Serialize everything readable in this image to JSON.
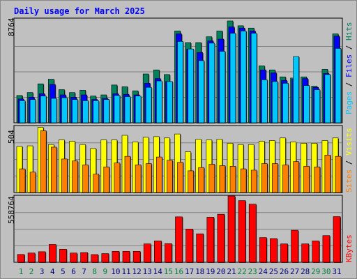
{
  "title": "Daily usage for March 2025",
  "panels": {
    "top": {
      "max_label": "8764",
      "legend": [
        "Pages",
        "Files",
        "Hits"
      ]
    },
    "middle": {
      "max_label": "504",
      "legend": [
        "Sites",
        "Visits"
      ]
    },
    "bottom": {
      "max_label": "558764",
      "legend": [
        "KBytes"
      ]
    }
  },
  "colors": {
    "background": "#c0c0c0",
    "title": "#0000ff",
    "hits": "#00805c",
    "files": "#0000ff",
    "pages": "#00c8ff",
    "visits": "#ffff00",
    "sites": "#ff8000",
    "kbytes": "#ff0000",
    "weekday_label": "#000080",
    "weekend_label": "#008040"
  },
  "chart_data": [
    {
      "type": "bar",
      "title": "Daily usage for March 2025",
      "ylabel": "Pages / Files / Hits",
      "ylim": [
        0,
        8764
      ],
      "categories": [
        "1",
        "2",
        "3",
        "4",
        "5",
        "6",
        "7",
        "8",
        "9",
        "10",
        "11",
        "12",
        "13",
        "14",
        "15",
        "16",
        "17",
        "18",
        "19",
        "20",
        "21",
        "22",
        "23",
        "24",
        "25",
        "26",
        "27",
        "28",
        "29",
        "30",
        "31"
      ],
      "weekend_days": [
        "1",
        "2",
        "8",
        "9",
        "15",
        "16",
        "22",
        "23",
        "29",
        "30"
      ],
      "series": [
        {
          "name": "Hits",
          "values": [
            2350,
            2600,
            3350,
            3750,
            2850,
            2600,
            2800,
            2300,
            2400,
            3250,
            3100,
            2750,
            4200,
            4550,
            4150,
            7900,
            6900,
            6900,
            7400,
            7900,
            8764,
            8350,
            8150,
            4900,
            4550,
            3950,
            3850,
            3950,
            3150,
            4600,
            7650
          ]
        },
        {
          "name": "Files",
          "values": [
            2050,
            2200,
            2500,
            3300,
            2400,
            2200,
            2400,
            2000,
            2100,
            2500,
            2450,
            2400,
            3400,
            3800,
            3550,
            7650,
            6350,
            6050,
            7050,
            7200,
            8250,
            8150,
            7900,
            4550,
            4300,
            3650,
            3750,
            3800,
            3050,
            4250,
            7450
          ]
        },
        {
          "name": "Pages",
          "values": [
            1900,
            2000,
            2300,
            2100,
            2150,
            2000,
            1900,
            1900,
            2000,
            2350,
            2250,
            2300,
            3050,
            3600,
            3550,
            7000,
            6350,
            5350,
            6850,
            6150,
            7700,
            7900,
            7700,
            3700,
            3550,
            3400,
            5700,
            3200,
            2850,
            4150,
            6400
          ]
        }
      ]
    },
    {
      "type": "bar",
      "ylabel": "Sites / Visits",
      "ylim": [
        0,
        504
      ],
      "categories": [
        "1",
        "2",
        "3",
        "4",
        "5",
        "6",
        "7",
        "8",
        "9",
        "10",
        "11",
        "12",
        "13",
        "14",
        "15",
        "16",
        "17",
        "18",
        "19",
        "20",
        "21",
        "22",
        "23",
        "24",
        "25",
        "26",
        "27",
        "28",
        "29",
        "30",
        "31"
      ],
      "series": [
        {
          "name": "Visits",
          "values": [
            350,
            355,
            495,
            365,
            400,
            390,
            365,
            335,
            400,
            400,
            435,
            385,
            420,
            425,
            415,
            445,
            310,
            405,
            400,
            405,
            375,
            365,
            365,
            390,
            395,
            415,
            385,
            375,
            375,
            395,
            415
          ]
        },
        {
          "name": "Sites",
          "values": [
            180,
            155,
            470,
            345,
            255,
            240,
            210,
            140,
            195,
            225,
            275,
            210,
            220,
            270,
            245,
            230,
            165,
            190,
            215,
            205,
            200,
            180,
            170,
            220,
            220,
            210,
            235,
            200,
            195,
            285,
            275
          ]
        }
      ]
    },
    {
      "type": "bar",
      "ylabel": "KBytes",
      "ylim": [
        0,
        558764
      ],
      "categories": [
        "1",
        "2",
        "3",
        "4",
        "5",
        "6",
        "7",
        "8",
        "9",
        "10",
        "11",
        "12",
        "13",
        "14",
        "15",
        "16",
        "17",
        "18",
        "19",
        "20",
        "21",
        "22",
        "23",
        "24",
        "25",
        "26",
        "27",
        "28",
        "29",
        "30",
        "31"
      ],
      "series": [
        {
          "name": "KBytes",
          "values": [
            66000,
            78000,
            89000,
            150000,
            110000,
            78000,
            82000,
            65000,
            73000,
            92000,
            92000,
            92000,
            155000,
            180000,
            157000,
            383000,
            280000,
            240000,
            380000,
            405000,
            558764,
            520000,
            490000,
            208000,
            200000,
            155000,
            270000,
            155000,
            180000,
            225000,
            385000
          ]
        }
      ]
    }
  ]
}
